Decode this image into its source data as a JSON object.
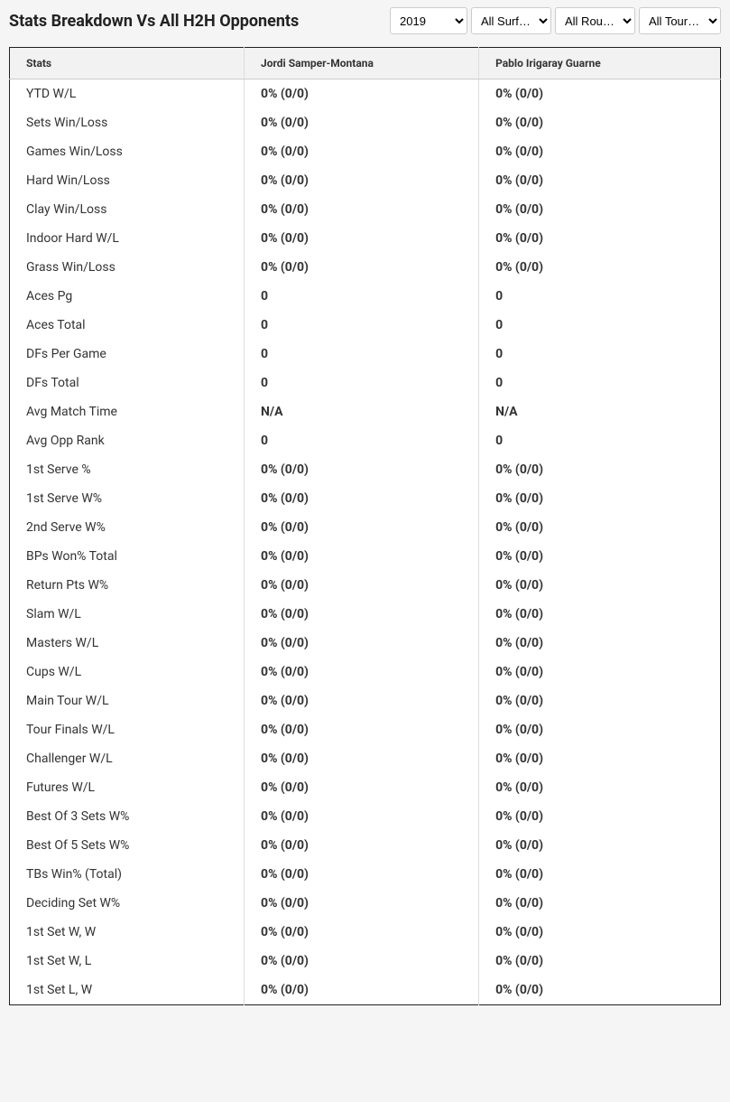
{
  "header": {
    "title": "Stats Breakdown Vs All H2H Opponents"
  },
  "filters": {
    "year": {
      "selected": "2019",
      "options": [
        "2019"
      ]
    },
    "surface": {
      "selected": "All Surf…",
      "options": [
        "All Surf…"
      ]
    },
    "round": {
      "selected": "All Rou…",
      "options": [
        "All Rou…"
      ]
    },
    "tournament": {
      "selected": "All Tour…",
      "options": [
        "All Tour…"
      ]
    }
  },
  "table": {
    "columns": [
      "Stats",
      "Jordi Samper-Montana",
      "Pablo Irigaray Guarne"
    ],
    "rows": [
      [
        "YTD W/L",
        "0% (0/0)",
        "0% (0/0)"
      ],
      [
        "Sets Win/Loss",
        "0% (0/0)",
        "0% (0/0)"
      ],
      [
        "Games Win/Loss",
        "0% (0/0)",
        "0% (0/0)"
      ],
      [
        "Hard Win/Loss",
        "0% (0/0)",
        "0% (0/0)"
      ],
      [
        "Clay Win/Loss",
        "0% (0/0)",
        "0% (0/0)"
      ],
      [
        "Indoor Hard W/L",
        "0% (0/0)",
        "0% (0/0)"
      ],
      [
        "Grass Win/Loss",
        "0% (0/0)",
        "0% (0/0)"
      ],
      [
        "Aces Pg",
        "0",
        "0"
      ],
      [
        "Aces Total",
        "0",
        "0"
      ],
      [
        "DFs Per Game",
        "0",
        "0"
      ],
      [
        "DFs Total",
        "0",
        "0"
      ],
      [
        "Avg Match Time",
        "N/A",
        "N/A"
      ],
      [
        "Avg Opp Rank",
        "0",
        "0"
      ],
      [
        "1st Serve %",
        "0% (0/0)",
        "0% (0/0)"
      ],
      [
        "1st Serve W%",
        "0% (0/0)",
        "0% (0/0)"
      ],
      [
        "2nd Serve W%",
        "0% (0/0)",
        "0% (0/0)"
      ],
      [
        "BPs Won% Total",
        "0% (0/0)",
        "0% (0/0)"
      ],
      [
        "Return Pts W%",
        "0% (0/0)",
        "0% (0/0)"
      ],
      [
        "Slam W/L",
        "0% (0/0)",
        "0% (0/0)"
      ],
      [
        "Masters W/L",
        "0% (0/0)",
        "0% (0/0)"
      ],
      [
        "Cups W/L",
        "0% (0/0)",
        "0% (0/0)"
      ],
      [
        "Main Tour W/L",
        "0% (0/0)",
        "0% (0/0)"
      ],
      [
        "Tour Finals W/L",
        "0% (0/0)",
        "0% (0/0)"
      ],
      [
        "Challenger W/L",
        "0% (0/0)",
        "0% (0/0)"
      ],
      [
        "Futures W/L",
        "0% (0/0)",
        "0% (0/0)"
      ],
      [
        "Best Of 3 Sets W%",
        "0% (0/0)",
        "0% (0/0)"
      ],
      [
        "Best Of 5 Sets W%",
        "0% (0/0)",
        "0% (0/0)"
      ],
      [
        "TBs Win% (Total)",
        "0% (0/0)",
        "0% (0/0)"
      ],
      [
        "Deciding Set W%",
        "0% (0/0)",
        "0% (0/0)"
      ],
      [
        "1st Set W, W",
        "0% (0/0)",
        "0% (0/0)"
      ],
      [
        "1st Set W, L",
        "0% (0/0)",
        "0% (0/0)"
      ],
      [
        "1st Set L, W",
        "0% (0/0)",
        "0% (0/0)"
      ]
    ]
  }
}
